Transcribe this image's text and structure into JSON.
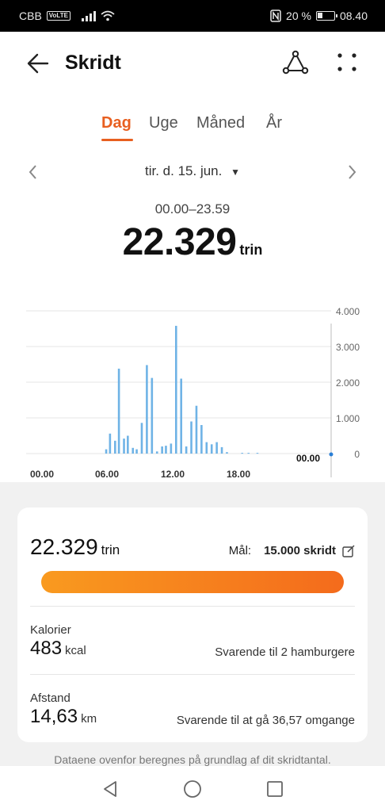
{
  "status_bar": {
    "carrier": "CBB",
    "volte": "VoLTE",
    "battery_text": "20 %",
    "time": "08.40"
  },
  "app_bar": {
    "title": "Skridt",
    "icons": [
      "back-arrow-icon",
      "share-icon",
      "more-vert-icon"
    ]
  },
  "tabs": [
    {
      "label": "Dag",
      "active": true
    },
    {
      "label": "Uge",
      "active": false
    },
    {
      "label": "Måned",
      "active": false
    },
    {
      "label": "År",
      "active": false
    }
  ],
  "date": {
    "label": "tir. d. 15. jun.",
    "range": "00.00–23.59"
  },
  "total": {
    "value": "22.329",
    "unit": "trin"
  },
  "chart_data": {
    "type": "bar",
    "y_ticks": [
      "4.000",
      "3.000",
      "2.000",
      "1.000",
      "0"
    ],
    "x_ticks": [
      "00.00",
      "06.00",
      "12.00",
      "18.00"
    ],
    "cursor_label": "00.00",
    "ylim": [
      0,
      4000
    ],
    "x_unit_hours": [
      0,
      24
    ],
    "bars": [
      {
        "x": 6.3,
        "y": 120
      },
      {
        "x": 6.6,
        "y": 560
      },
      {
        "x": 7.0,
        "y": 360
      },
      {
        "x": 7.3,
        "y": 2380
      },
      {
        "x": 7.7,
        "y": 420
      },
      {
        "x": 8.0,
        "y": 500
      },
      {
        "x": 8.4,
        "y": 160
      },
      {
        "x": 8.7,
        "y": 120
      },
      {
        "x": 9.1,
        "y": 860
      },
      {
        "x": 9.5,
        "y": 2480
      },
      {
        "x": 9.9,
        "y": 2120
      },
      {
        "x": 10.3,
        "y": 60
      },
      {
        "x": 10.7,
        "y": 200
      },
      {
        "x": 11.0,
        "y": 220
      },
      {
        "x": 11.4,
        "y": 280
      },
      {
        "x": 11.8,
        "y": 3580
      },
      {
        "x": 12.2,
        "y": 2100
      },
      {
        "x": 12.6,
        "y": 200
      },
      {
        "x": 13.0,
        "y": 900
      },
      {
        "x": 13.4,
        "y": 1340
      },
      {
        "x": 13.8,
        "y": 800
      },
      {
        "x": 14.2,
        "y": 320
      },
      {
        "x": 14.6,
        "y": 260
      },
      {
        "x": 15.0,
        "y": 320
      },
      {
        "x": 15.4,
        "y": 180
      },
      {
        "x": 15.8,
        "y": 40
      },
      {
        "x": 17.0,
        "y": 20
      },
      {
        "x": 17.5,
        "y": 20
      },
      {
        "x": 18.2,
        "y": 20
      }
    ],
    "bar_color": "#6fb3e6",
    "grid": true
  },
  "summary": {
    "value": "22.329",
    "unit": "trin",
    "goal_label": "Mål:",
    "goal_value": "15.000 skridt",
    "progress_fraction": 1.0
  },
  "calories": {
    "label": "Kalorier",
    "value": "483",
    "unit": "kcal",
    "note": "Svarende til 2 hamburgere"
  },
  "distance": {
    "label": "Afstand",
    "value": "14,63",
    "unit": "km",
    "note": "Svarende til at gå 36,57 omgange"
  },
  "footnote": "Dataene ovenfor beregnes på grundlag af dit skridtantal.",
  "colors": {
    "accent": "#e85f20",
    "progress_start": "#f99a1f",
    "progress_end": "#f46b1c"
  }
}
